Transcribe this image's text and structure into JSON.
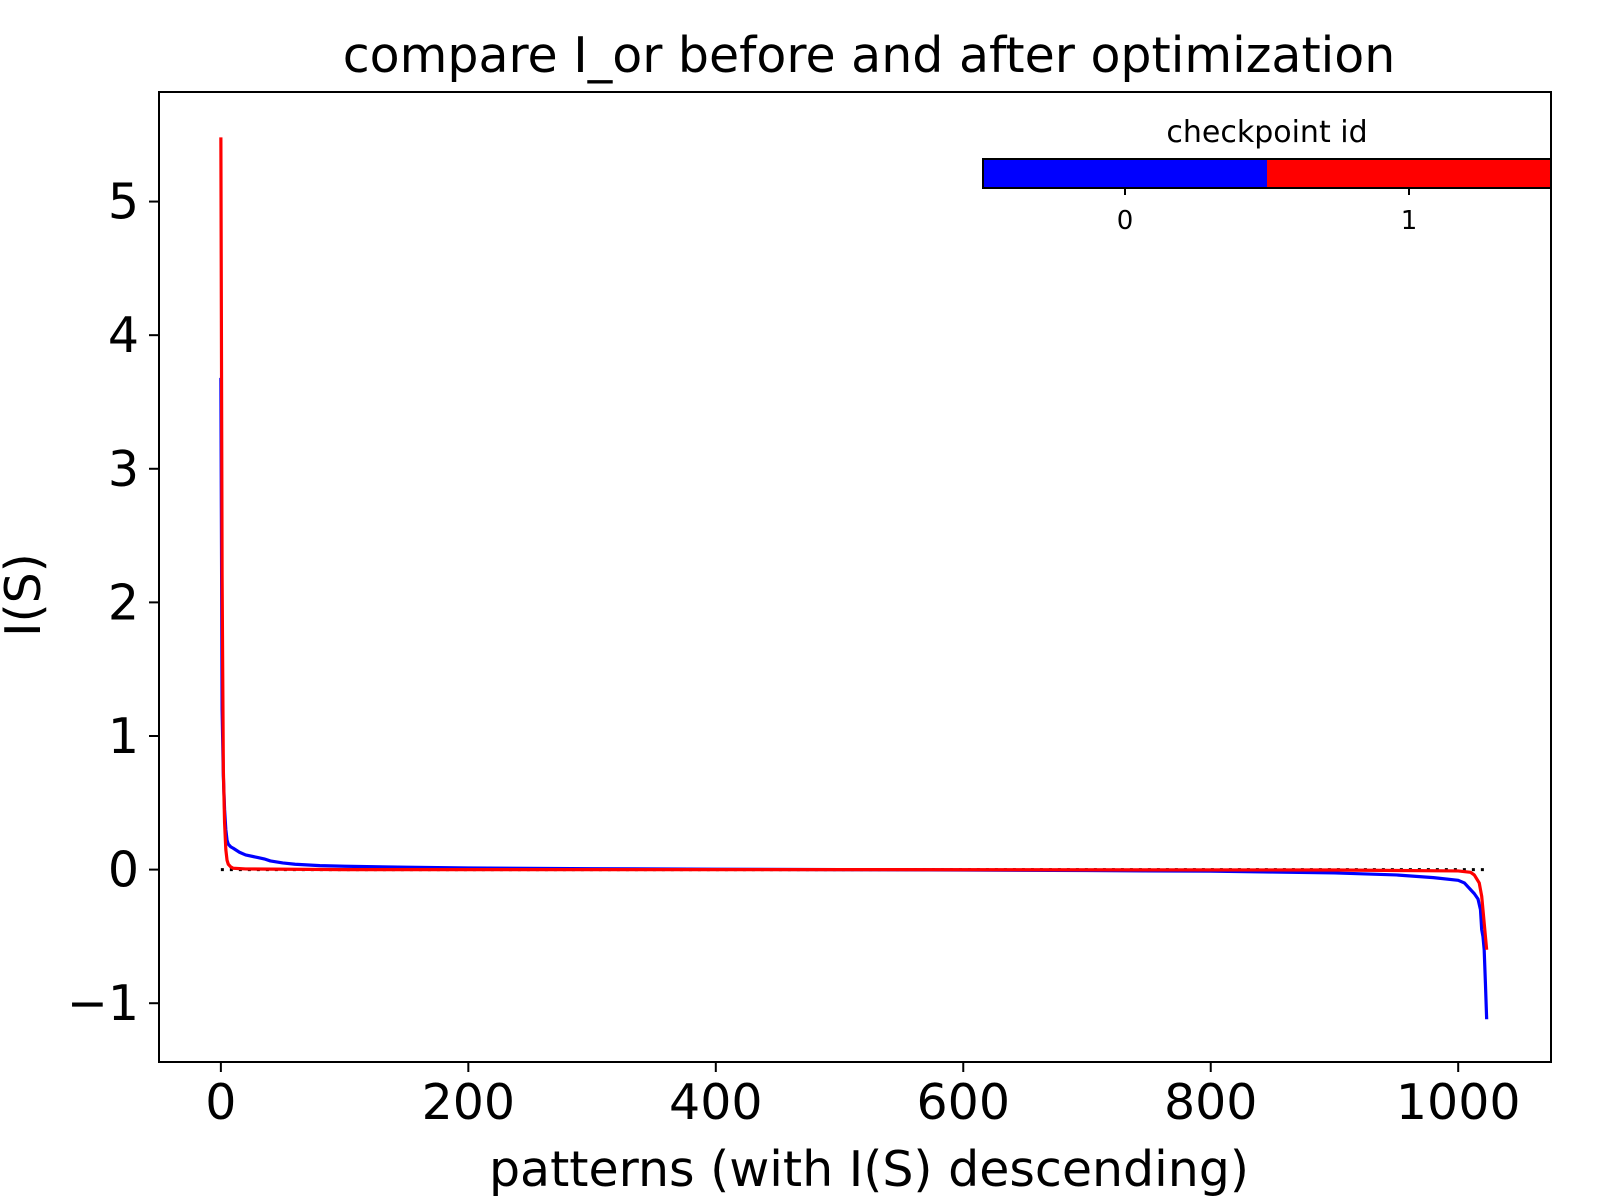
{
  "chart_data": {
    "type": "line",
    "title": "compare I_or before and after optimization",
    "xlabel": "patterns (with I(S) descending)",
    "ylabel": "I(S)",
    "xlim": [
      -50,
      1075
    ],
    "ylim": [
      -1.44,
      5.82
    ],
    "xticks": [
      0,
      200,
      400,
      600,
      800,
      1000
    ],
    "xtick_labels": [
      "0",
      "200",
      "400",
      "600",
      "800",
      "1000"
    ],
    "yticks": [
      -1,
      0,
      1,
      2,
      3,
      4,
      5
    ],
    "ytick_labels": [
      "−1",
      "0",
      "1",
      "2",
      "3",
      "4",
      "5"
    ],
    "grid": false,
    "reference_line": {
      "y": 0,
      "x_range": [
        0,
        1023
      ],
      "style": "dotted",
      "color": "#000000"
    },
    "colorbar": {
      "title": "checkpoint id",
      "placement": "top-right",
      "orientation": "horizontal",
      "ticks": [
        "0",
        "1"
      ],
      "colors": [
        "#0000ff",
        "#ff0000"
      ]
    },
    "series": [
      {
        "color": "#0000ff",
        "x": [
          0,
          1,
          2,
          3,
          4,
          5,
          6,
          8,
          10,
          15,
          20,
          30,
          35,
          40,
          50,
          60,
          80,
          100,
          150,
          200,
          300,
          400,
          500,
          600,
          700,
          800,
          850,
          900,
          950,
          980,
          1000,
          1005,
          1010,
          1013,
          1016,
          1018,
          1019,
          1020,
          1021,
          1022,
          1023
        ],
        "y": [
          3.68,
          1.2,
          0.7,
          0.45,
          0.3,
          0.22,
          0.19,
          0.17,
          0.16,
          0.13,
          0.11,
          0.09,
          0.08,
          0.065,
          0.05,
          0.04,
          0.03,
          0.025,
          0.018,
          0.012,
          0.007,
          0.003,
          0.0,
          -0.003,
          -0.007,
          -0.012,
          -0.018,
          -0.025,
          -0.04,
          -0.06,
          -0.08,
          -0.1,
          -0.15,
          -0.18,
          -0.22,
          -0.3,
          -0.45,
          -0.5,
          -0.6,
          -0.85,
          -1.12
        ]
      },
      {
        "color": "#ff0000",
        "x": [
          0,
          1,
          2,
          3,
          4,
          5,
          6,
          8,
          10,
          20,
          100,
          500,
          900,
          1000,
          1010,
          1013,
          1015,
          1017,
          1018,
          1019,
          1020,
          1021,
          1022,
          1023
        ],
        "y": [
          5.48,
          2.2,
          0.75,
          0.35,
          0.15,
          0.07,
          0.04,
          0.02,
          0.01,
          0.005,
          0.0,
          0.0,
          -0.003,
          -0.01,
          -0.02,
          -0.04,
          -0.07,
          -0.1,
          -0.15,
          -0.2,
          -0.3,
          -0.4,
          -0.5,
          -0.6
        ]
      }
    ]
  }
}
